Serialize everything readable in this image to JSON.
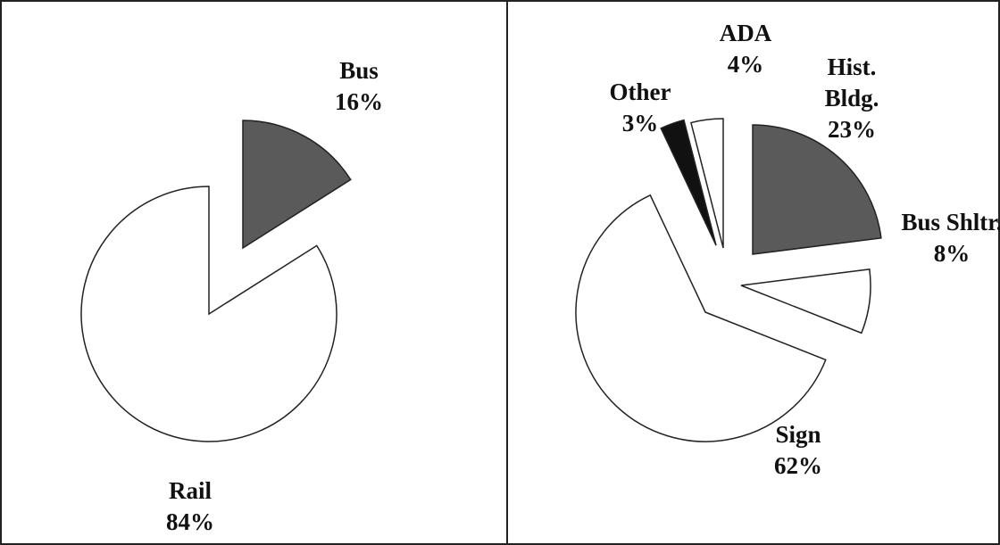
{
  "chart_data": [
    {
      "type": "pie",
      "categories": [
        "Bus",
        "Rail"
      ],
      "values": [
        16,
        84
      ],
      "value_labels": [
        "16%",
        "84%"
      ],
      "colors": [
        "#5a5a5a",
        "#ffffff"
      ]
    },
    {
      "type": "pie",
      "categories": [
        "Hist. Bldg.",
        "Bus Shltr.",
        "Sign",
        "Other",
        "ADA"
      ],
      "values": [
        23,
        8,
        62,
        3,
        4
      ],
      "value_labels": [
        "23%",
        "8%",
        "62%",
        "3%",
        "4%"
      ],
      "colors": [
        "#5a5a5a",
        "#ffffff",
        "#ffffff",
        "#111111",
        "#ffffff"
      ]
    }
  ]
}
